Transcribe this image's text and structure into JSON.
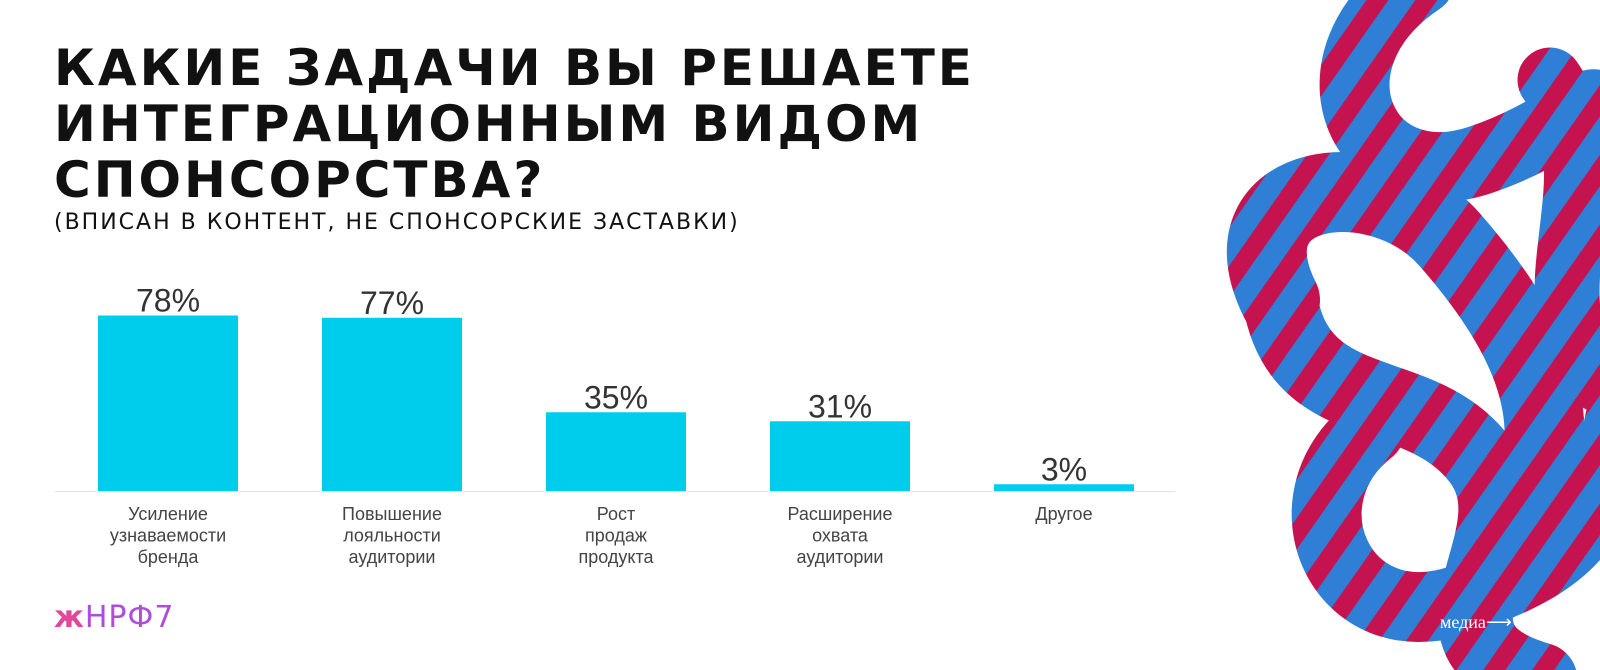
{
  "title_lines": [
    "КАКИЕ ЗАДАЧИ ВЫ РЕШАЕТЕ",
    "ИНТЕГРАЦИОННЫМ ВИДОМ",
    "СПОНСОРСТВА?"
  ],
  "subtitle": "(ВПИСАН В КОНТЕНТ, НЕ СПОНСОРСКИЕ ЗАСТАВКИ)",
  "chart_data": {
    "type": "bar",
    "categories": [
      [
        "Усиление",
        "узнаваемости",
        "бренда"
      ],
      [
        "Повышение",
        "лояльности",
        "аудитории"
      ],
      [
        "Рост",
        "продаж",
        "продукта"
      ],
      [
        "Расширение",
        "охвата",
        "аудитории"
      ],
      [
        "Другое"
      ]
    ],
    "values": [
      78,
      77,
      35,
      31,
      3
    ],
    "value_labels": [
      "78%",
      "77%",
      "35%",
      "31%",
      "3%"
    ],
    "ylim": [
      0,
      80
    ],
    "bar_color": "#00cdec",
    "grid": false,
    "legend": "none"
  },
  "footer": {
    "logo_mark": "ж",
    "logo_text": "НРФ7",
    "corner_text": "медиа"
  },
  "colors": {
    "bar": "#00cdec",
    "logo": "#b04bdc",
    "logo_mark": "#e0499b",
    "knot_blue": "#2f7fd6",
    "knot_red": "#c4134f"
  }
}
